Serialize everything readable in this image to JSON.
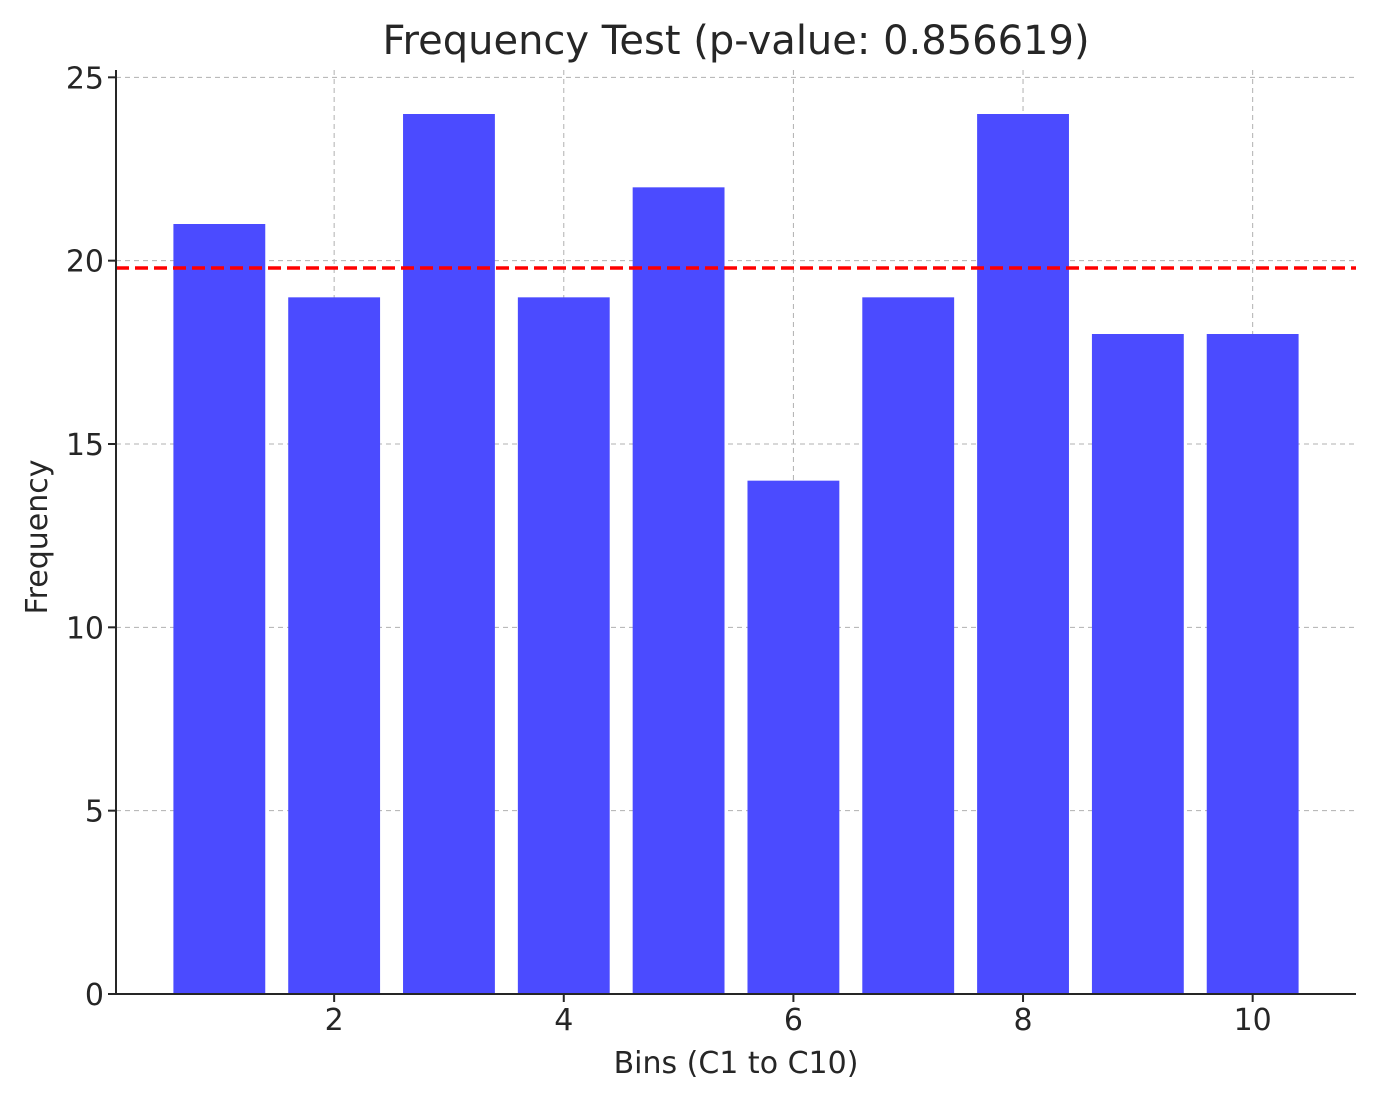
{
  "chart_data": {
    "type": "bar",
    "title": "Frequency Test (p-value: 0.856619)",
    "xlabel": "Bins (C1 to C10)",
    "ylabel": "Frequency",
    "categories": [
      1,
      2,
      3,
      4,
      5,
      6,
      7,
      8,
      9,
      10
    ],
    "values": [
      21,
      19,
      24,
      19,
      22,
      14,
      19,
      24,
      18,
      18
    ],
    "xlim": [
      0.1,
      10.9
    ],
    "ylim": [
      0,
      25.2
    ],
    "xticks": [
      2,
      4,
      6,
      8,
      10
    ],
    "yticks": [
      0,
      5,
      10,
      15,
      20,
      25
    ],
    "bar_width": 0.8,
    "bar_color": "#4b4bff",
    "expected_line": {
      "value": 19.8,
      "color": "#ff0000",
      "style": "dashed"
    },
    "grid": true
  }
}
